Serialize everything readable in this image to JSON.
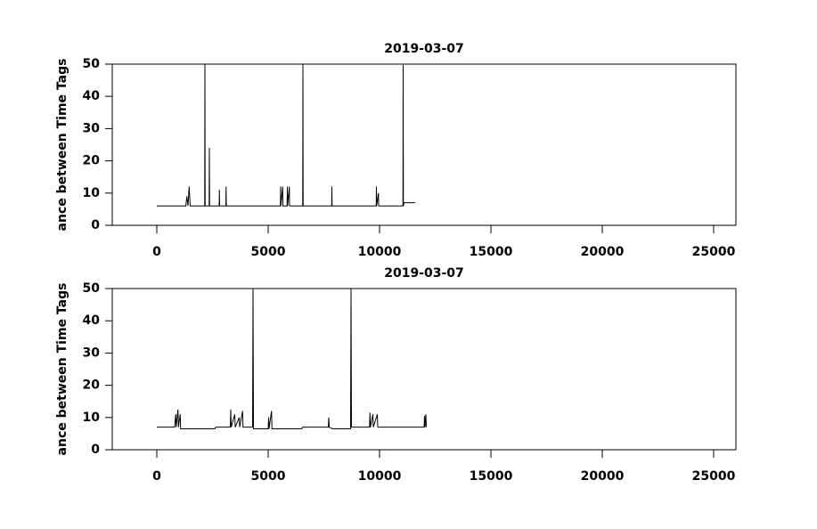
{
  "chart_data": [
    {
      "type": "line",
      "title": "2019-03-07",
      "ylabel": "ance between Time Tags",
      "color": "#000000",
      "xlim": [
        -2000,
        26000
      ],
      "ylim": [
        0,
        50
      ],
      "xticks": [
        0,
        5000,
        10000,
        15000,
        20000,
        25000
      ],
      "yticks": [
        0,
        10,
        20,
        30,
        40,
        50
      ],
      "x": [
        0,
        1000,
        1300,
        1350,
        1400,
        1450,
        1500,
        2150,
        2160,
        2170,
        2350,
        2360,
        2370,
        2800,
        2810,
        2820,
        3100,
        3110,
        3120,
        5550,
        5560,
        5570,
        5650,
        5660,
        5850,
        5860,
        5870,
        5950,
        5960,
        6550,
        6560,
        6570,
        7850,
        7860,
        7870,
        9850,
        9860,
        9870,
        9950,
        9960,
        11050,
        11060,
        11070,
        11100,
        11600
      ],
      "values": [
        6,
        6,
        6,
        9,
        6,
        12,
        6,
        6,
        50,
        6,
        6,
        24,
        6,
        6,
        11,
        6,
        6,
        12,
        6,
        6,
        12,
        6,
        12,
        6,
        6,
        12,
        6,
        12,
        6,
        6,
        50,
        6,
        6,
        12,
        6,
        6,
        12,
        6,
        10,
        6,
        6,
        50,
        6,
        7,
        7
      ]
    },
    {
      "type": "line",
      "title": "2019-03-07",
      "ylabel": "ance between Time Tags",
      "color": "#000000",
      "xlim": [
        -2000,
        26000
      ],
      "ylim": [
        0,
        50
      ],
      "xticks": [
        0,
        5000,
        10000,
        15000,
        20000,
        25000
      ],
      "yticks": [
        0,
        10,
        20,
        30,
        40,
        50
      ],
      "x": [
        0,
        800,
        850,
        870,
        950,
        970,
        1050,
        1070,
        2600,
        2650,
        3300,
        3320,
        3340,
        3500,
        3520,
        3700,
        3720,
        3850,
        3870,
        4300,
        4320,
        4340,
        5000,
        5020,
        5040,
        5150,
        5170,
        6500,
        6550,
        7700,
        7720,
        7740,
        7900,
        8700,
        8720,
        8740,
        9550,
        9570,
        9590,
        9700,
        9720,
        9900,
        9920,
        12000,
        12020,
        12040,
        12080,
        12100
      ],
      "values": [
        7,
        7,
        11,
        7,
        12.5,
        7,
        11,
        6.5,
        6.5,
        7,
        7,
        12.5,
        7,
        11,
        7,
        10,
        7,
        12,
        7,
        7,
        50,
        6.5,
        6.5,
        10,
        6.5,
        12,
        6.5,
        6.5,
        7,
        7,
        10,
        7,
        6.5,
        6.5,
        50,
        7,
        7,
        11.5,
        7,
        11,
        7,
        11,
        7,
        7,
        10.5,
        7,
        11,
        7
      ]
    }
  ]
}
